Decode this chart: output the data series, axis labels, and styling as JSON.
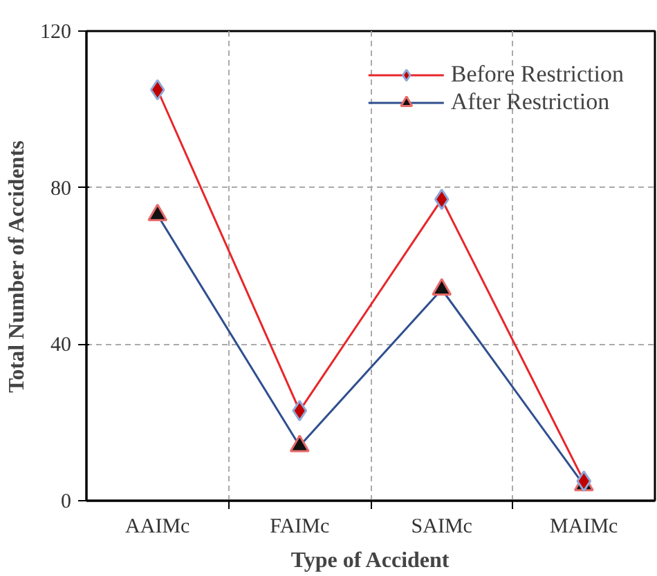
{
  "chart_data": {
    "type": "line",
    "xlabel": "Type of Accident",
    "ylabel": "Total Number of Accidents",
    "categories": [
      "AAIMc",
      "FAIMc",
      "SAIMc",
      "MAIMc"
    ],
    "series": [
      {
        "name": "Before Restriction",
        "color": "#e8262a",
        "marker": "diamond",
        "values": [
          105,
          23,
          77,
          5
        ]
      },
      {
        "name": "After Restriction",
        "color": "#2f4f8f",
        "marker": "triangle",
        "values": [
          73,
          14,
          54,
          4
        ]
      }
    ],
    "ylim": [
      0,
      120
    ],
    "yticks": [
      0,
      40,
      80,
      120
    ],
    "grid": true,
    "legend": "top right",
    "line_style": "solid"
  }
}
